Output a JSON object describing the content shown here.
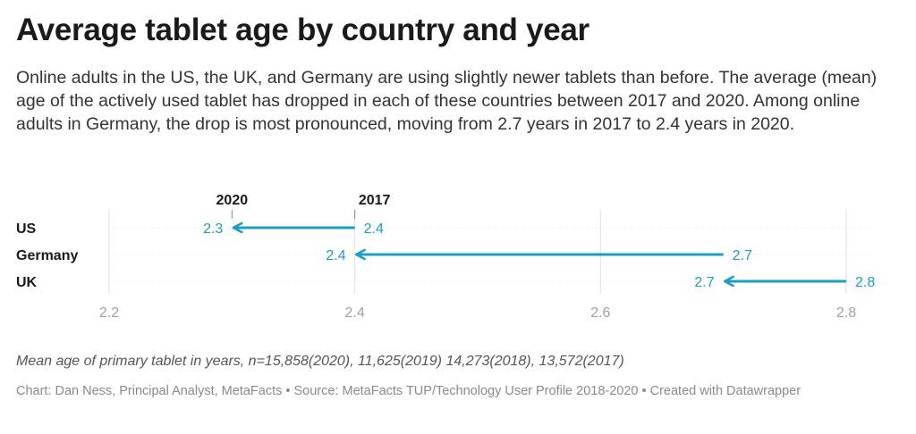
{
  "title": "Average tablet age by country and year",
  "subtitle": "Online adults in the US, the UK, and Germany are using slightly newer tablets than before. The average (mean) age of the actively used tablet has dropped in each of these countries between 2017 and 2020. Among online adults in Germany, the drop is most pronounced, moving from 2.7 years in 2017 to 2.4 years in 2020.",
  "notes": "Mean age of primary tablet in years, n=15,858(2020), 11,625(2019) 14,273(2018), 13,572(2017)",
  "byline": "Chart: Dan Ness, Principal Analyst, MetaFacts • Source: MetaFacts TUP/Technology User Profile 2018-2020 • Created with Datawrapper",
  "colors": {
    "arrow": "#1b9ec2",
    "grid": "#e2e2e2",
    "axis_text": "#a0a0a0",
    "label_text": "#1a1a1a"
  },
  "chart_data": {
    "type": "arrow",
    "categories": [
      "US",
      "Germany",
      "UK"
    ],
    "series": [
      {
        "name": "2017",
        "values": [
          2.4,
          2.7,
          2.8
        ]
      },
      {
        "name": "2020",
        "values": [
          2.3,
          2.4,
          2.7
        ]
      }
    ],
    "xlim": [
      2.2,
      2.8
    ],
    "xticks": [
      2.2,
      2.4,
      2.6,
      2.8
    ],
    "xtick_labels": [
      "2.2",
      "2.4",
      "2.6",
      "2.8"
    ],
    "data_labels_start": [
      "2.4",
      "2.7",
      "2.8"
    ],
    "data_labels_end": [
      "2.3",
      "2.4",
      "2.7"
    ],
    "grid": true
  }
}
